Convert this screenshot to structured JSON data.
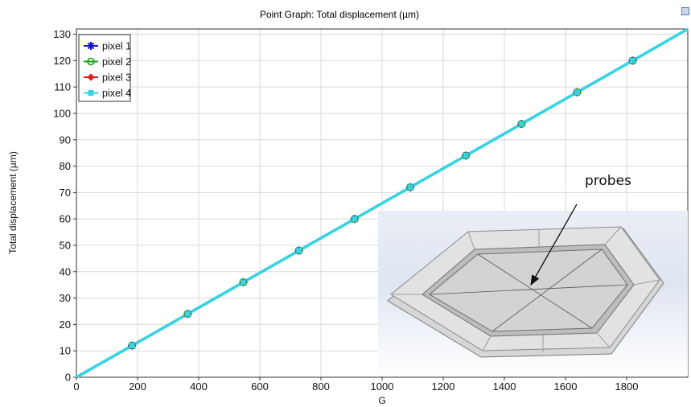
{
  "window": {
    "title": "Point Graph: Total displacement (µm)"
  },
  "annotation": {
    "text": "probes"
  },
  "chart_data": {
    "type": "line",
    "title": "Point Graph: Total displacement (µm)",
    "xlabel": "G",
    "ylabel": "Total displacement (µm)",
    "xlim": [
      0,
      2000
    ],
    "ylim": [
      0,
      132
    ],
    "xticks": [
      0,
      200,
      400,
      600,
      800,
      1000,
      1200,
      1400,
      1600,
      1800
    ],
    "yticks": [
      0,
      10,
      20,
      30,
      40,
      50,
      60,
      70,
      80,
      90,
      100,
      110,
      120,
      130
    ],
    "grid": true,
    "legend_position": "top-left",
    "x": [
      0,
      182,
      364,
      546,
      728,
      910,
      1092,
      1274,
      1456,
      1638,
      1820,
      2000
    ],
    "series": [
      {
        "name": "pixel 1",
        "color": "#1414d2",
        "marker": "asterisk",
        "values": [
          0,
          12,
          24,
          36,
          48,
          60,
          72,
          84,
          96,
          108,
          120,
          132
        ]
      },
      {
        "name": "pixel 2",
        "color": "#1aa01a",
        "marker": "circle",
        "values": [
          0,
          12,
          24,
          36,
          48,
          60,
          72,
          84,
          96,
          108,
          120,
          132
        ]
      },
      {
        "name": "pixel 3",
        "color": "#e01818",
        "marker": "diamond",
        "values": [
          0,
          12,
          24,
          36,
          48,
          60,
          72,
          84,
          96,
          108,
          120,
          132
        ]
      },
      {
        "name": "pixel 4",
        "color": "#35d3e3",
        "marker": "square",
        "values": [
          0,
          12,
          24,
          36,
          48,
          60,
          72,
          84,
          96,
          108,
          120,
          132
        ]
      }
    ]
  }
}
